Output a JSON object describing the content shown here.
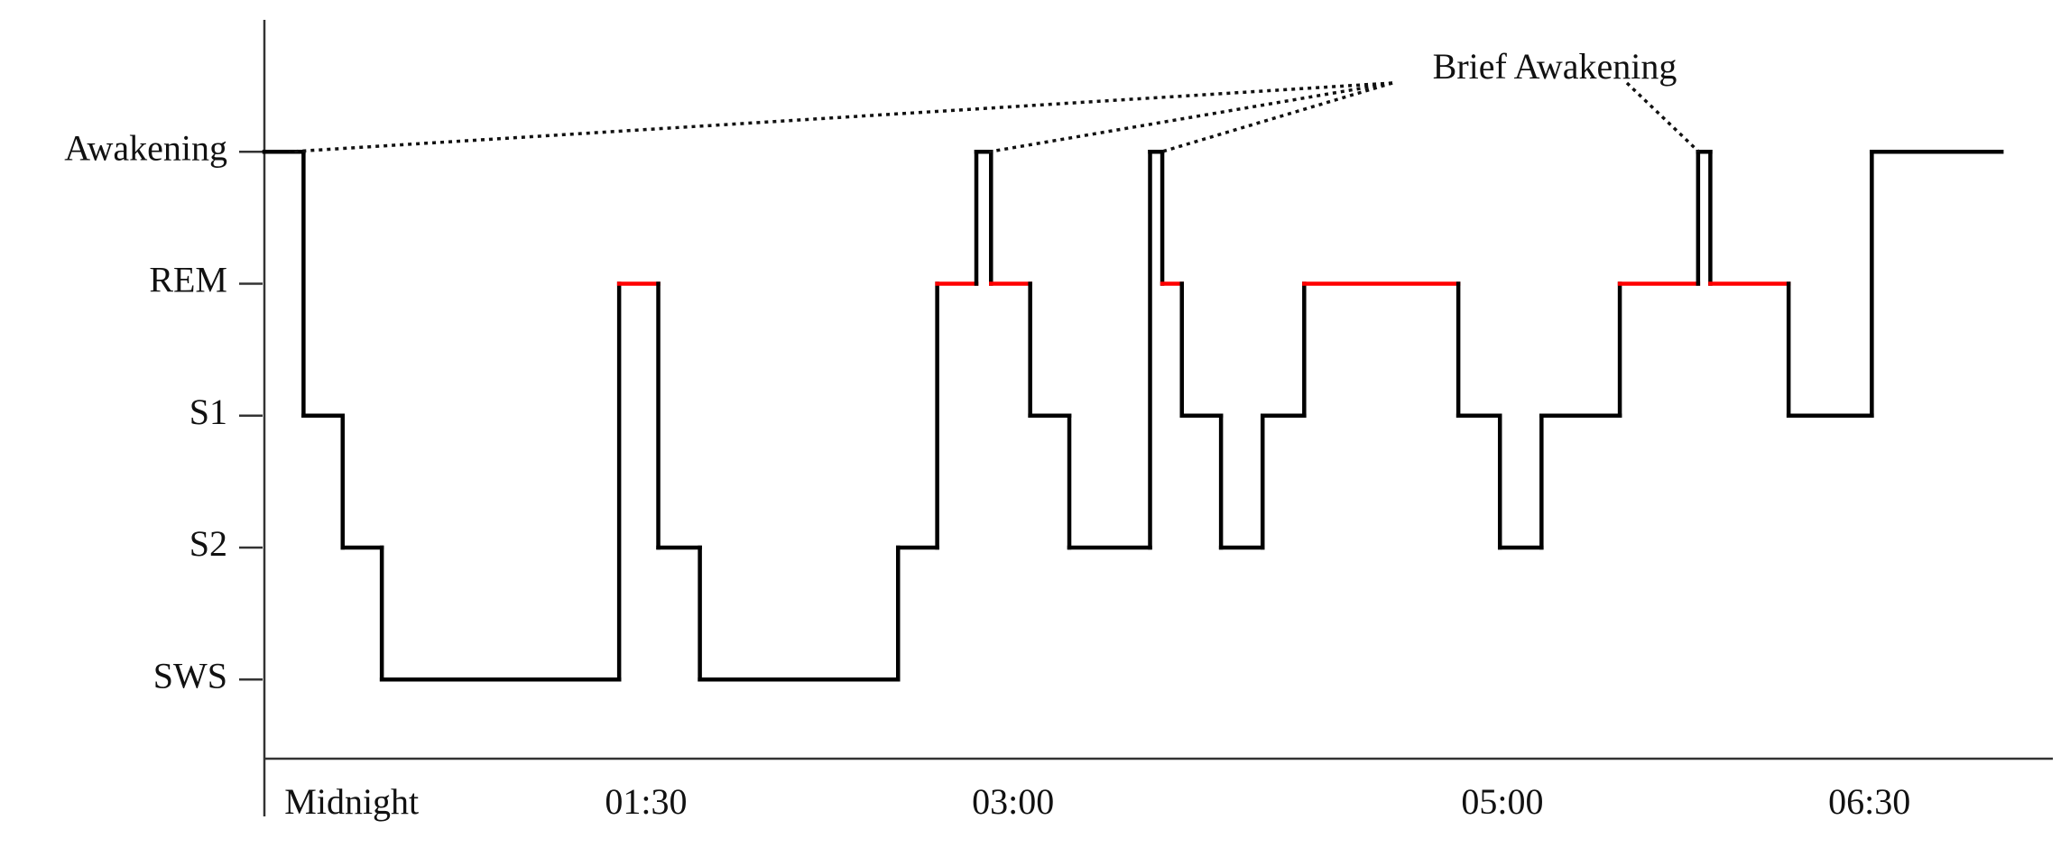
{
  "chart_data": {
    "type": "step",
    "annotation": "Brief Awakening",
    "x": [
      -0.06,
      0.1,
      0.26,
      0.42,
      1.39,
      1.55,
      1.72,
      2.53,
      2.69,
      2.85,
      2.91,
      3.07,
      3.23,
      3.56,
      3.61,
      3.69,
      3.85,
      4.02,
      4.19,
      4.82,
      4.99,
      5.16,
      5.48,
      5.8,
      5.85,
      6.17,
      6.51,
      7.04
    ],
    "series": [
      {
        "color": "#000000",
        "values": [
          4,
          2,
          1,
          0,
          3,
          1,
          0,
          1,
          3,
          4,
          3,
          2,
          1,
          4,
          3,
          2,
          1,
          2,
          3,
          2,
          1,
          2,
          3,
          4,
          3,
          2,
          4,
          4
        ]
      }
    ],
    "highlight": {
      "value": 3,
      "color": "#ff0000"
    },
    "xlim": [
      -0.06,
      7.25
    ],
    "xticks": [
      {
        "value": 0,
        "label": "Midnight"
      },
      {
        "value": 1.5,
        "label": "01:30"
      },
      {
        "value": 3,
        "label": "03:00"
      },
      {
        "value": 5,
        "label": "05:00"
      },
      {
        "value": 6.5,
        "label": "06:30"
      }
    ],
    "ylim": [
      -0.6,
      5
    ],
    "yticks": [
      {
        "value": 4,
        "label": "Awakening"
      },
      {
        "value": 3,
        "label": "REM"
      },
      {
        "value": 2,
        "label": "S1"
      },
      {
        "value": 1,
        "label": "S2"
      },
      {
        "value": 0,
        "label": "SWS"
      }
    ],
    "grid": false
  }
}
